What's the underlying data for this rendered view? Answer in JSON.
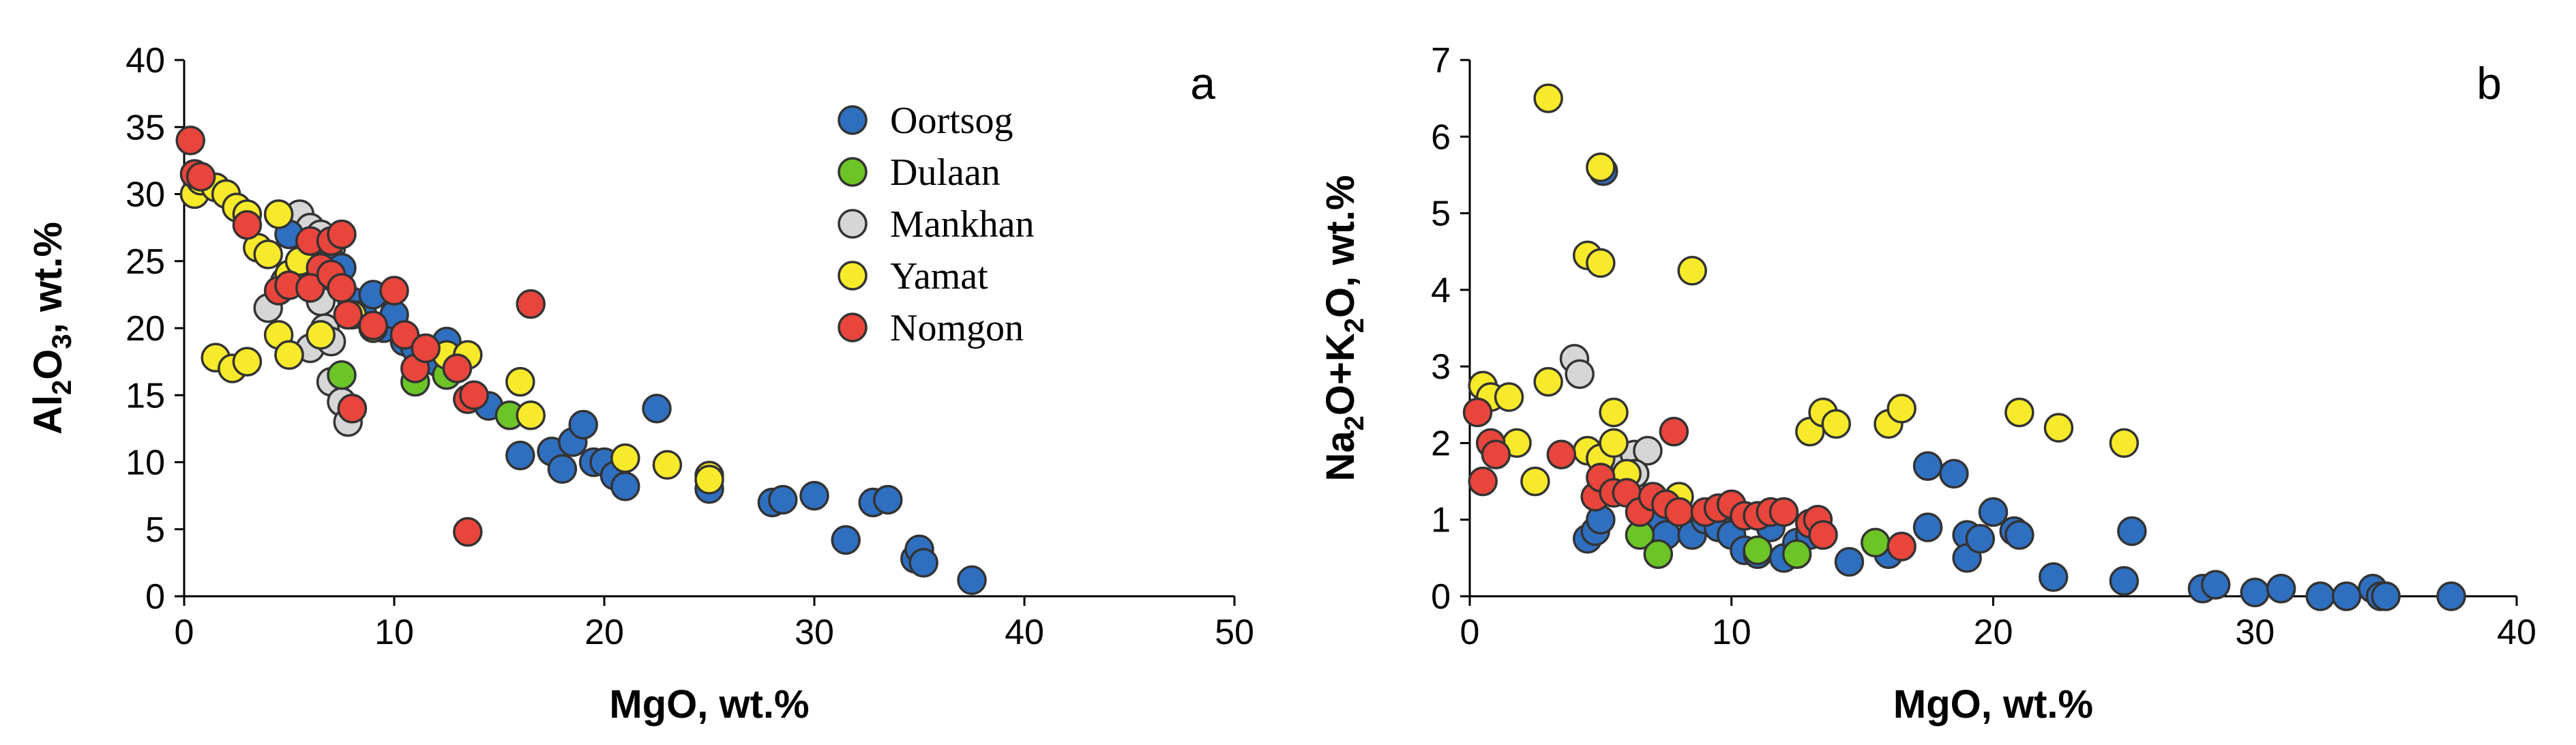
{
  "colors": {
    "Oortsog": "#2f6fc0",
    "Dulaan": "#6cc427",
    "Mankhan": "#d6d6d6",
    "Yamat": "#f7ea2a",
    "Nomgon": "#e8453c",
    "axis": "#000000",
    "marker_edge": "#333333"
  },
  "chart_data": [
    {
      "type": "scatter",
      "panel_letter": "a",
      "xlabel": "MgO, wt.%",
      "ylabel": {
        "parts": [
          {
            "t": "Al",
            "sub": false
          },
          {
            "t": "2",
            "sub": true
          },
          {
            "t": "O",
            "sub": false
          },
          {
            "t": "3",
            "sub": true
          },
          {
            "t": ", wt.%",
            "sub": false
          }
        ]
      },
      "xlim": [
        0,
        50
      ],
      "ylim": [
        0,
        40
      ],
      "xticks": [
        "0",
        "10",
        "20",
        "30",
        "40",
        "50"
      ],
      "yticks": [
        "0",
        "5",
        "10",
        "15",
        "20",
        "25",
        "30",
        "35",
        "40"
      ],
      "xtick_values": [
        0,
        10,
        20,
        30,
        40,
        50
      ],
      "ytick_values": [
        0,
        5,
        10,
        15,
        20,
        25,
        30,
        35,
        40
      ],
      "legend": {
        "location": "top-right",
        "entries": [
          "Oortsog",
          "Dulaan",
          "Mankhan",
          "Yamat",
          "Nomgon"
        ]
      },
      "series": [
        {
          "name": "Mankhan",
          "points": [
            [
              4,
              21.5
            ],
            [
              4.8,
              23.5
            ],
            [
              5.5,
              28.5
            ],
            [
              6,
              27.5
            ],
            [
              6.5,
              27
            ],
            [
              7,
              26
            ],
            [
              6,
              18.5
            ],
            [
              6.7,
              20
            ],
            [
              7,
              19
            ],
            [
              7,
              16
            ],
            [
              7.5,
              14.5
            ],
            [
              7.8,
              13
            ],
            [
              8,
              14
            ],
            [
              5,
              18
            ],
            [
              6.5,
              22
            ]
          ]
        },
        {
          "name": "Oortsog",
          "points": [
            [
              4.5,
              28.5
            ],
            [
              5,
              27
            ],
            [
              7,
              25
            ],
            [
              7.5,
              24.5
            ],
            [
              8,
              22
            ],
            [
              8.5,
              21
            ],
            [
              9,
              22.5
            ],
            [
              9.5,
              20
            ],
            [
              10,
              21
            ],
            [
              10.5,
              19
            ],
            [
              11,
              18.5
            ],
            [
              11.5,
              18.5
            ],
            [
              12,
              17.5
            ],
            [
              12.5,
              19
            ],
            [
              13,
              17.5
            ],
            [
              14.5,
              14.2
            ],
            [
              16,
              10.5
            ],
            [
              17.5,
              10.8
            ],
            [
              18,
              9.5
            ],
            [
              18.5,
              11.5
            ],
            [
              19,
              12.8
            ],
            [
              19.5,
              10
            ],
            [
              20,
              10
            ],
            [
              20.5,
              9
            ],
            [
              21,
              8.2
            ],
            [
              22.5,
              14
            ],
            [
              25,
              8
            ],
            [
              28,
              7
            ],
            [
              28.5,
              7.2
            ],
            [
              30,
              7.5
            ],
            [
              31.5,
              4.2
            ],
            [
              32.8,
              7
            ],
            [
              33.5,
              7.2
            ],
            [
              34.8,
              2.8
            ],
            [
              35,
              3.5
            ],
            [
              35.2,
              2.5
            ],
            [
              37.5,
              1.2
            ]
          ]
        },
        {
          "name": "Dulaan",
          "points": [
            [
              7.5,
              16.5
            ],
            [
              11,
              16
            ],
            [
              12.5,
              16.5
            ],
            [
              15.5,
              13.5
            ]
          ]
        },
        {
          "name": "Yamat",
          "points": [
            [
              0.5,
              30
            ],
            [
              0.8,
              31
            ],
            [
              1.5,
              30.5
            ],
            [
              2,
              30
            ],
            [
              2.5,
              29
            ],
            [
              3,
              28.5
            ],
            [
              3.5,
              26
            ],
            [
              4,
              25.5
            ],
            [
              4.5,
              28.5
            ],
            [
              5,
              24
            ],
            [
              5.5,
              25
            ],
            [
              4.5,
              19.5
            ],
            [
              5,
              18
            ],
            [
              6.5,
              19.5
            ],
            [
              1.5,
              17.8
            ],
            [
              2.3,
              17
            ],
            [
              3,
              17.5
            ],
            [
              8,
              21
            ],
            [
              9,
              20
            ],
            [
              12.5,
              18
            ],
            [
              13,
              17
            ],
            [
              13.5,
              18
            ],
            [
              16,
              16
            ],
            [
              16.5,
              13.5
            ],
            [
              21,
              10.3
            ],
            [
              23,
              9.8
            ],
            [
              25,
              9
            ],
            [
              25,
              8.7
            ]
          ]
        },
        {
          "name": "Nomgon",
          "points": [
            [
              0.3,
              34
            ],
            [
              0.5,
              31.5
            ],
            [
              0.8,
              31.3
            ],
            [
              3,
              27.7
            ],
            [
              4.5,
              22.8
            ],
            [
              5,
              23.2
            ],
            [
              6,
              26.5
            ],
            [
              6.5,
              24.5
            ],
            [
              7,
              26.5
            ],
            [
              7.5,
              27
            ],
            [
              6,
              23
            ],
            [
              7,
              24
            ],
            [
              7.5,
              23
            ],
            [
              7.8,
              21
            ],
            [
              8,
              14
            ],
            [
              9,
              20.2
            ],
            [
              10,
              22.8
            ],
            [
              10.5,
              19.5
            ],
            [
              11,
              17
            ],
            [
              11.5,
              18.5
            ],
            [
              13,
              17
            ],
            [
              13.5,
              14.7
            ],
            [
              13.8,
              15
            ],
            [
              16.5,
              21.8
            ],
            [
              13.5,
              4.8
            ]
          ]
        }
      ]
    },
    {
      "type": "scatter",
      "panel_letter": "b",
      "xlabel": "MgO, wt.%",
      "ylabel": {
        "parts": [
          {
            "t": "Na",
            "sub": false
          },
          {
            "t": "2",
            "sub": true
          },
          {
            "t": "O+K",
            "sub": false
          },
          {
            "t": "2",
            "sub": true
          },
          {
            "t": "O, wt.%",
            "sub": false
          }
        ]
      },
      "xlim": [
        0,
        40
      ],
      "ylim": [
        0,
        7
      ],
      "xticks": [
        "0",
        "10",
        "20",
        "30",
        "40"
      ],
      "yticks": [
        "0",
        "1",
        "2",
        "3",
        "4",
        "5",
        "6",
        "7"
      ],
      "xtick_values": [
        0,
        10,
        20,
        30,
        40
      ],
      "ytick_values": [
        0,
        1,
        2,
        3,
        4,
        5,
        6,
        7
      ],
      "legend": null,
      "series": [
        {
          "name": "Mankhan",
          "points": [
            [
              4,
              3.1
            ],
            [
              4.2,
              2.9
            ],
            [
              5.8,
              1.8
            ],
            [
              6.3,
              1.85
            ],
            [
              6.8,
              1.9
            ],
            [
              6.3,
              1.6
            ]
          ]
        },
        {
          "name": "Oortsog",
          "points": [
            [
              4.5,
              0.75
            ],
            [
              4.8,
              0.85
            ],
            [
              5,
              1
            ],
            [
              5.1,
              5.55
            ],
            [
              7,
              1
            ],
            [
              7.5,
              0.8
            ],
            [
              8,
              1.1
            ],
            [
              8.5,
              0.8
            ],
            [
              9,
              1
            ],
            [
              9.5,
              0.9
            ],
            [
              10,
              0.8
            ],
            [
              10.5,
              0.6
            ],
            [
              11,
              0.55
            ],
            [
              11.5,
              0.9
            ],
            [
              12,
              0.5
            ],
            [
              12.5,
              0.7
            ],
            [
              13,
              0.8
            ],
            [
              14.5,
              0.45
            ],
            [
              16,
              0.55
            ],
            [
              17.5,
              1.7
            ],
            [
              17.5,
              0.9
            ],
            [
              18.5,
              1.6
            ],
            [
              19,
              0.8
            ],
            [
              19,
              0.5
            ],
            [
              19.5,
              0.75
            ],
            [
              20,
              1.1
            ],
            [
              20.8,
              0.85
            ],
            [
              21,
              0.8
            ],
            [
              22.3,
              0.25
            ],
            [
              25,
              0.2
            ],
            [
              25.3,
              0.85
            ],
            [
              28,
              0.1
            ],
            [
              28.5,
              0.15
            ],
            [
              30,
              0.05
            ],
            [
              31,
              0.1
            ],
            [
              32.5,
              0
            ],
            [
              33.5,
              0
            ],
            [
              34.5,
              0.1
            ],
            [
              34.8,
              0
            ],
            [
              35,
              0
            ],
            [
              37.5,
              0
            ]
          ]
        },
        {
          "name": "Dulaan",
          "points": [
            [
              6.5,
              0.8
            ],
            [
              7.2,
              0.55
            ],
            [
              11,
              0.6
            ],
            [
              12.5,
              0.55
            ],
            [
              15.5,
              0.7
            ]
          ]
        },
        {
          "name": "Yamat",
          "points": [
            [
              0.5,
              2.75
            ],
            [
              0.8,
              2.6
            ],
            [
              1.5,
              2.6
            ],
            [
              1.8,
              2
            ],
            [
              2.5,
              1.5
            ],
            [
              3,
              2.8
            ],
            [
              3,
              6.5
            ],
            [
              4.5,
              4.45
            ],
            [
              5,
              4.35
            ],
            [
              5,
              5.6
            ],
            [
              4.5,
              1.9
            ],
            [
              5,
              1.8
            ],
            [
              5.5,
              2.4
            ],
            [
              5.5,
              2
            ],
            [
              6,
              1.6
            ],
            [
              8,
              1.3
            ],
            [
              8.5,
              4.25
            ],
            [
              13,
              2.15
            ],
            [
              13.5,
              2.4
            ],
            [
              14,
              2.25
            ],
            [
              16,
              2.25
            ],
            [
              16.5,
              2.45
            ],
            [
              21,
              2.4
            ],
            [
              22.5,
              2.2
            ],
            [
              25,
              2
            ]
          ]
        },
        {
          "name": "Nomgon",
          "points": [
            [
              0.3,
              2.4
            ],
            [
              0.5,
              1.5
            ],
            [
              0.8,
              2
            ],
            [
              1,
              1.85
            ],
            [
              3.5,
              1.85
            ],
            [
              4.8,
              1.3
            ],
            [
              5,
              1.55
            ],
            [
              5.5,
              1.35
            ],
            [
              6,
              1.35
            ],
            [
              6.5,
              1.1
            ],
            [
              7,
              1.3
            ],
            [
              7.5,
              1.2
            ],
            [
              7.8,
              2.15
            ],
            [
              8,
              1.1
            ],
            [
              9,
              1.1
            ],
            [
              9.5,
              1.15
            ],
            [
              10,
              1.2
            ],
            [
              10.5,
              1.05
            ],
            [
              11,
              1.05
            ],
            [
              11.5,
              1.1
            ],
            [
              12,
              1.1
            ],
            [
              13,
              0.95
            ],
            [
              13.3,
              1
            ],
            [
              13.5,
              0.8
            ],
            [
              16.5,
              0.65
            ]
          ]
        }
      ]
    }
  ]
}
